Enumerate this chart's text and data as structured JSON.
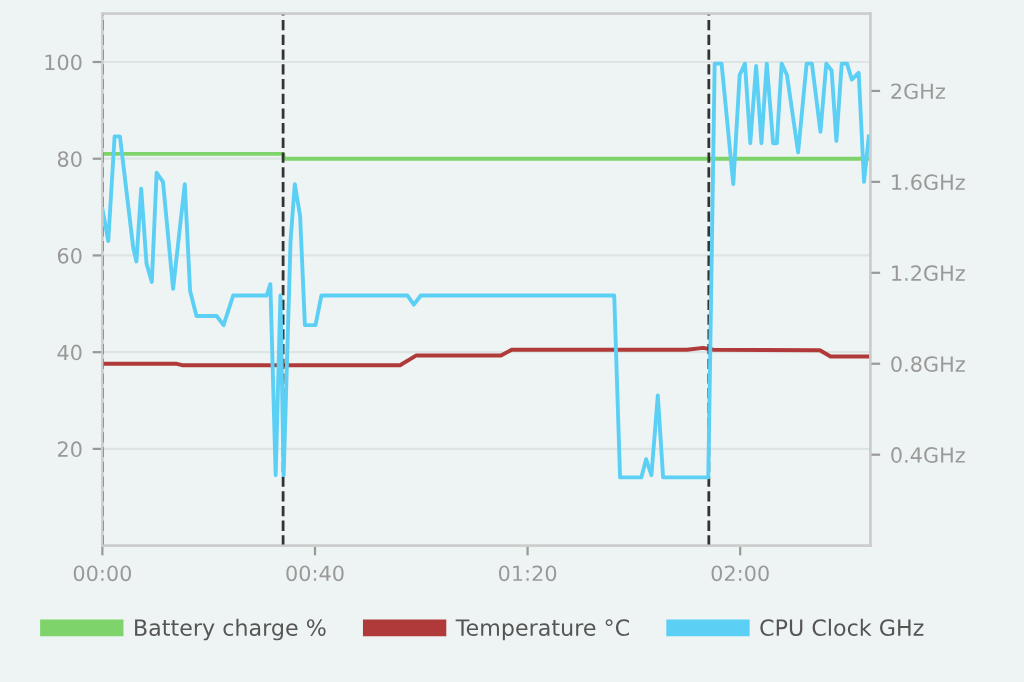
{
  "chart_data": {
    "type": "line",
    "legend": "bottom",
    "grid": "y",
    "line_style": "solid",
    "marker": "none",
    "xlim": [
      0,
      144.5
    ],
    "xticks": [
      {
        "value": 0,
        "label": "00:00"
      },
      {
        "value": 40,
        "label": "00:40"
      },
      {
        "value": 80,
        "label": "01:20"
      },
      {
        "value": 120,
        "label": "02:00"
      }
    ],
    "ylim": [
      0,
      110
    ],
    "yticks": [
      20,
      40,
      60,
      80,
      100
    ],
    "y2lim": [
      0,
      2.34
    ],
    "y2ticks": [
      {
        "value": 0.4,
        "label": "0.4GHz"
      },
      {
        "value": 0.8,
        "label": "0.8GHz"
      },
      {
        "value": 1.2,
        "label": "1.2GHz"
      },
      {
        "value": 1.6,
        "label": "1.6GHz"
      },
      {
        "value": 2,
        "label": "2GHz"
      }
    ],
    "ref_lines": [
      {
        "axis": "x",
        "value": 0,
        "color": "#333333",
        "line_style": "dashed"
      },
      {
        "axis": "x",
        "value": 34,
        "color": "#333333",
        "line_style": "dashed"
      },
      {
        "axis": "x",
        "value": 114.1,
        "color": "#333333",
        "line_style": "dashed"
      }
    ],
    "series": [
      {
        "name": "Battery charge %",
        "color": "#7ed36b",
        "x": [
          0,
          34,
          34.2,
          144.5
        ],
        "values": [
          81,
          81,
          80,
          80
        ]
      },
      {
        "name": "Temperature °C",
        "color": "#b03a3a",
        "x": [
          0,
          14,
          15,
          56,
          59,
          75,
          77,
          110,
          113,
          115,
          135,
          137,
          144.5
        ],
        "values": [
          37.6,
          37.6,
          37.3,
          37.3,
          39.3,
          39.3,
          40.5,
          40.5,
          40.9,
          40.5,
          40.4,
          39.1,
          39.1
        ]
      },
      {
        "name": "CPU Clock GHz",
        "color": "#5ccff5",
        "axis": "y2",
        "x": [
          0,
          1.1,
          2.3,
          3.3,
          5.8,
          6.4,
          7.3,
          8.3,
          9.3,
          10.2,
          11.4,
          13.3,
          15.5,
          16.5,
          17.7,
          21.5,
          22.8,
          24.6,
          30.9,
          31.6,
          32.6,
          33.5,
          34.1,
          35.4,
          36.2,
          37.2,
          38.1,
          40.1,
          41.2,
          57.4,
          58.6,
          59.9,
          96.3,
          97.4,
          101.4,
          102.3,
          103.3,
          104.5,
          105.5,
          114.0,
          115.2,
          116.5,
          118.7,
          119.9,
          120.9,
          121.9,
          123.0,
          124.0,
          125.0,
          126.2,
          126.9,
          127.8,
          128.8,
          130.9,
          132.5,
          133.5,
          135.1,
          136.2,
          137.2,
          138.1,
          139.1,
          140.1,
          141.0,
          142.3,
          143.3,
          144.2
        ],
        "values": [
          1.48,
          1.34,
          1.8,
          1.8,
          1.31,
          1.25,
          1.57,
          1.24,
          1.16,
          1.64,
          1.6,
          1.13,
          1.59,
          1.12,
          1.01,
          1.01,
          0.97,
          1.1,
          1.1,
          1.15,
          0.31,
          1.1,
          0.31,
          1.34,
          1.59,
          1.45,
          0.97,
          0.97,
          1.1,
          1.1,
          1.06,
          1.1,
          1.1,
          0.3,
          0.3,
          0.38,
          0.31,
          0.66,
          0.3,
          0.3,
          2.12,
          2.12,
          1.59,
          2.07,
          2.12,
          1.77,
          2.11,
          1.77,
          2.12,
          1.77,
          1.77,
          2.12,
          2.07,
          1.73,
          2.12,
          2.12,
          1.82,
          2.12,
          2.09,
          1.78,
          2.12,
          2.12,
          2.05,
          2.08,
          1.6,
          1.8
        ]
      }
    ]
  }
}
